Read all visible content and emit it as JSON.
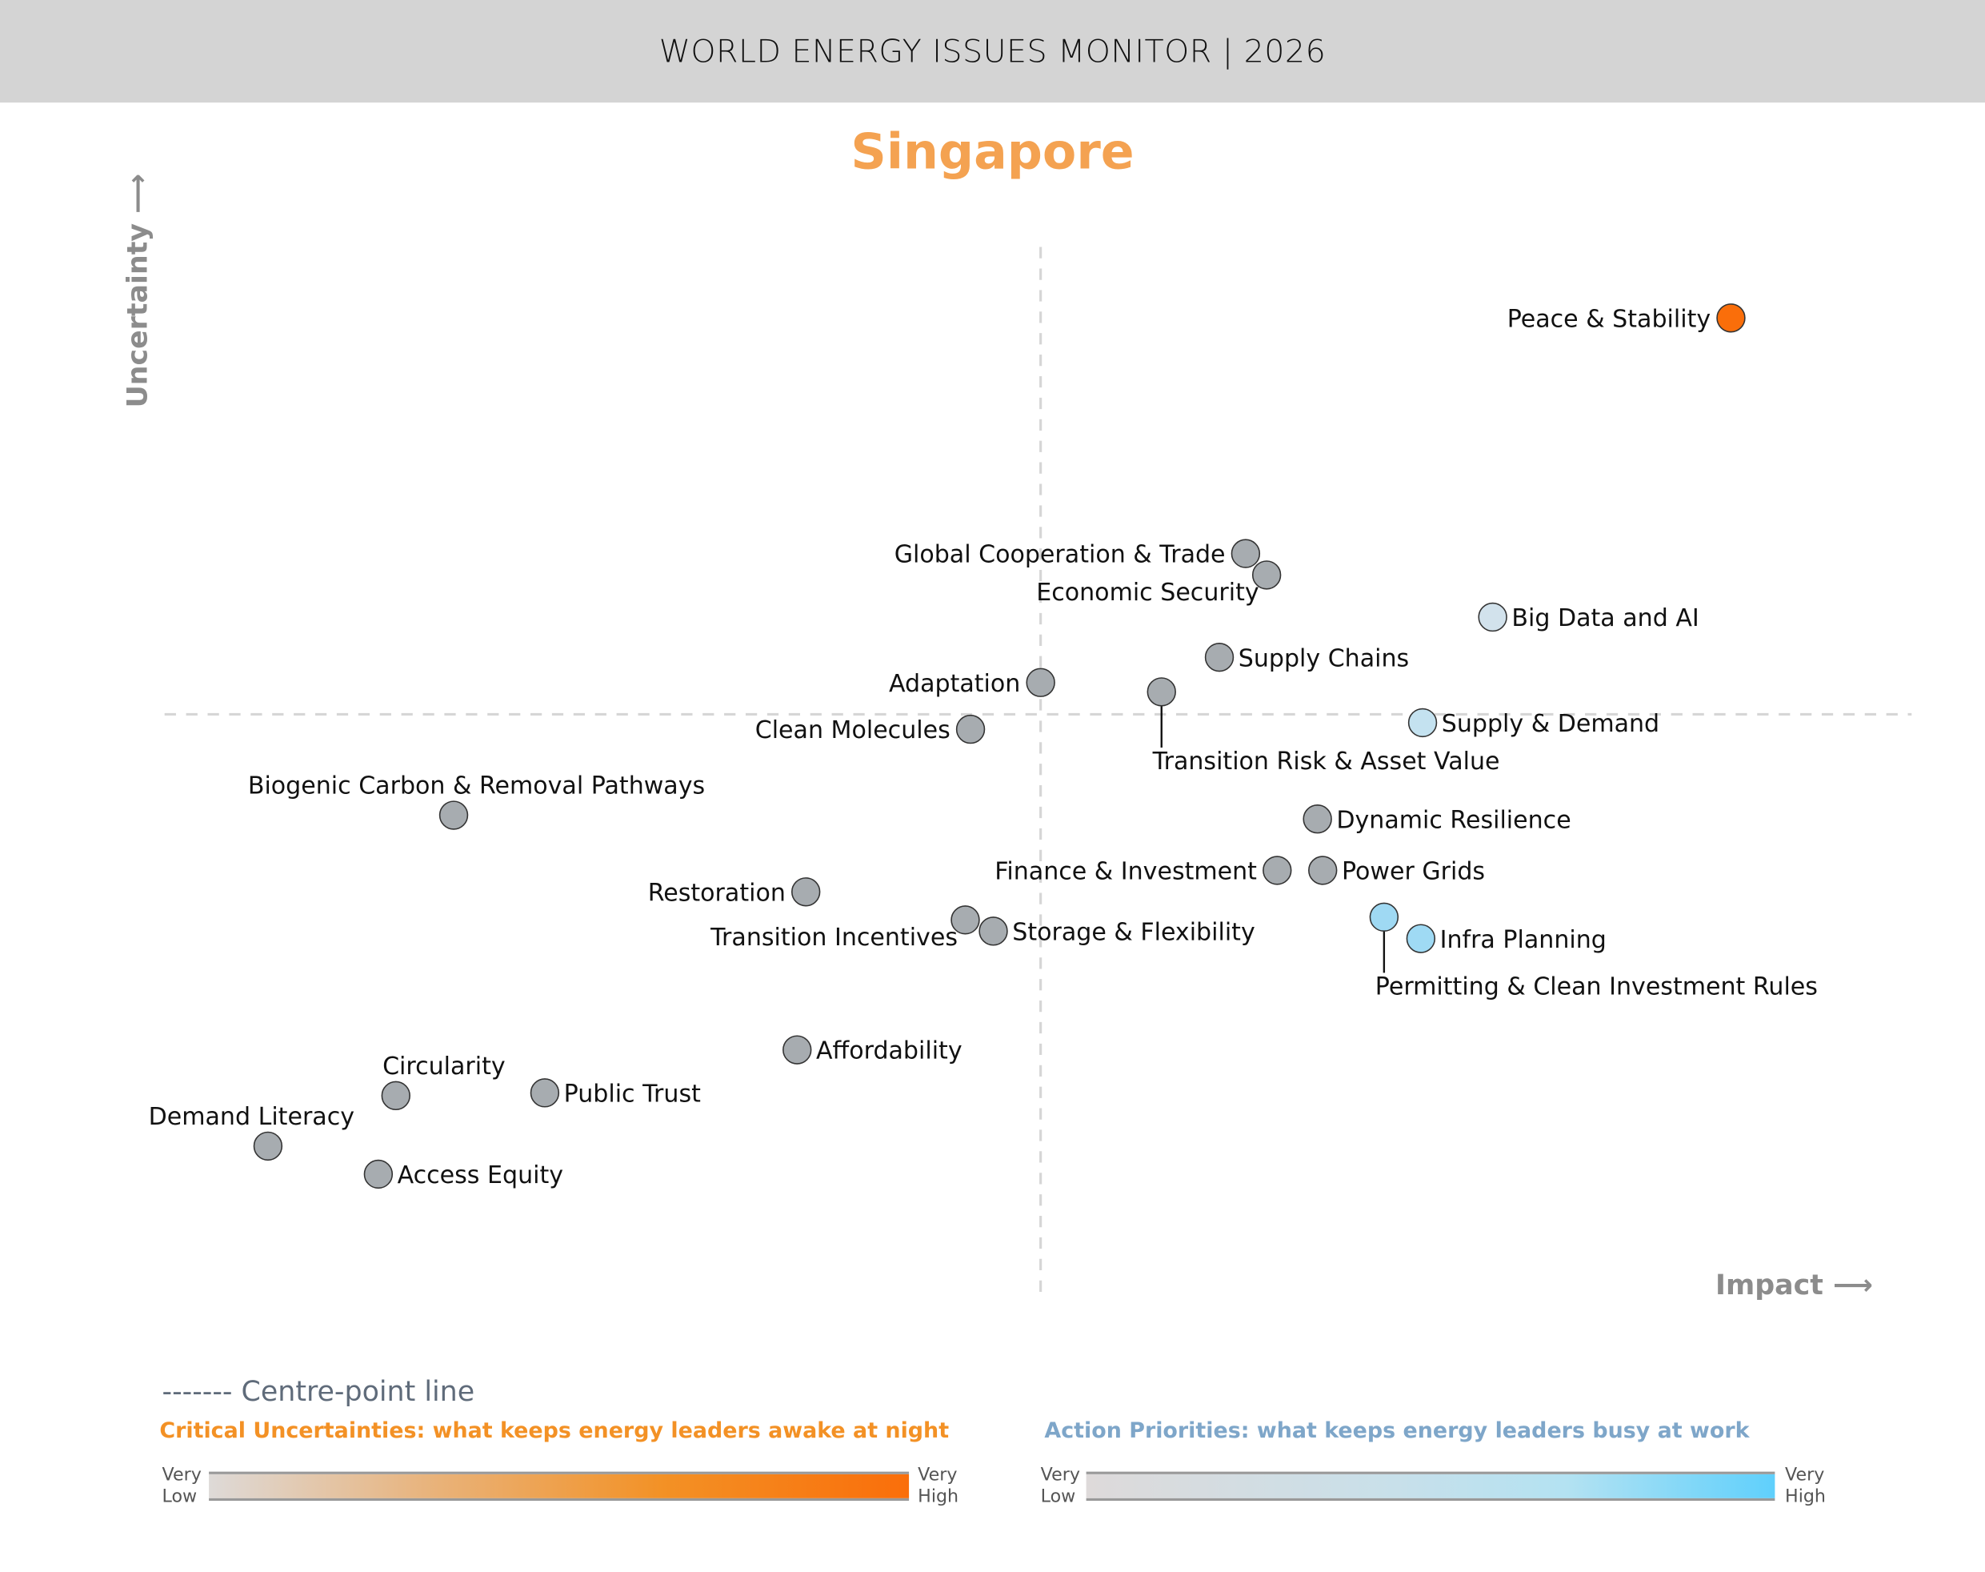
{
  "header": {
    "title": "WORLD ENERGY ISSUES MONITOR | 2026"
  },
  "chart_data": {
    "type": "scatter",
    "title": "Singapore",
    "xlabel": "Impact",
    "ylabel": "Uncertainty",
    "xlim": [
      0,
      100
    ],
    "ylim": [
      0,
      100
    ],
    "centre_point": {
      "impact": 50,
      "uncertainty": 50
    },
    "grid": false,
    "points": [
      {
        "label": "Peace & Stability",
        "impact": 89.4,
        "uncertainty": 92.4,
        "color": "#fa6e0a",
        "label_position": "left"
      },
      {
        "label": "Global Cooperation & Trade",
        "impact": 61.7,
        "uncertainty": 67.2,
        "color": "#a7acb0",
        "label_position": "left"
      },
      {
        "label": "Economic Security",
        "impact": 62.9,
        "uncertainty": 64.9,
        "color": "#a7acb0",
        "label_position": "below-left"
      },
      {
        "label": "Big Data and AI",
        "impact": 75.8,
        "uncertainty": 60.4,
        "color": "#d2e2ec",
        "label_position": "right"
      },
      {
        "label": "Supply Chains",
        "impact": 60.2,
        "uncertainty": 56.1,
        "color": "#a7acb0",
        "label_position": "right"
      },
      {
        "label": "Adaptation",
        "impact": 50.0,
        "uncertainty": 53.4,
        "color": "#a7acb0",
        "label_position": "left"
      },
      {
        "label": "Transition Risk & Asset Value",
        "impact": 56.9,
        "uncertainty": 52.4,
        "color": "#a7acb0",
        "label_position": "below-leader"
      },
      {
        "label": "Supply & Demand",
        "impact": 71.8,
        "uncertainty": 49.1,
        "color": "#c4e2f0",
        "label_position": "right"
      },
      {
        "label": "Clean Molecules",
        "impact": 46.0,
        "uncertainty": 48.4,
        "color": "#a7acb0",
        "label_position": "left"
      },
      {
        "label": "Biogenic Carbon & Removal Pathways",
        "impact": 16.5,
        "uncertainty": 39.2,
        "color": "#a7acb0",
        "label_position": "above"
      },
      {
        "label": "Dynamic Resilience",
        "impact": 65.8,
        "uncertainty": 38.8,
        "color": "#a7acb0",
        "label_position": "right"
      },
      {
        "label": "Finance & Investment",
        "impact": 63.5,
        "uncertainty": 33.3,
        "color": "#a7acb0",
        "label_position": "left"
      },
      {
        "label": "Power Grids",
        "impact": 66.1,
        "uncertainty": 33.3,
        "color": "#a7acb0",
        "label_position": "right"
      },
      {
        "label": "Restoration",
        "impact": 36.6,
        "uncertainty": 31.0,
        "color": "#a7acb0",
        "label_position": "left"
      },
      {
        "label": "Transition Incentives",
        "impact": 45.7,
        "uncertainty": 28.0,
        "color": "#a7acb0",
        "label_position": "below-left"
      },
      {
        "label": "Storage & Flexibility",
        "impact": 47.3,
        "uncertainty": 26.8,
        "color": "#a7acb0",
        "label_position": "right"
      },
      {
        "label": "Permitting & Clean Investment Rules",
        "impact": 69.6,
        "uncertainty": 28.3,
        "color": "#9fd9f3",
        "label_position": "below-leader"
      },
      {
        "label": "Infra Planning",
        "impact": 71.7,
        "uncertainty": 26.0,
        "color": "#9fdaf4",
        "label_position": "right"
      },
      {
        "label": "Affordability",
        "impact": 36.1,
        "uncertainty": 14.1,
        "color": "#a7acb0",
        "label_position": "right"
      },
      {
        "label": "Circularity",
        "impact": 13.2,
        "uncertainty": 9.2,
        "color": "#a7acb0",
        "label_position": "above"
      },
      {
        "label": "Public Trust",
        "impact": 21.7,
        "uncertainty": 9.5,
        "color": "#a7acb0",
        "label_position": "right"
      },
      {
        "label": "Demand Literacy",
        "impact": 5.9,
        "uncertainty": 3.8,
        "color": "#a7acb0",
        "label_position": "above"
      },
      {
        "label": "Access Equity",
        "impact": 12.2,
        "uncertainty": 0.8,
        "color": "#a7acb0",
        "label_position": "right"
      }
    ]
  },
  "axes": {
    "uncertainty_label": "Uncertainty ⟶",
    "impact_label": "Impact ⟶"
  },
  "legend": {
    "centre_line": "------- Centre-point line",
    "critical_uncertainties": {
      "title": "Critical Uncertainties: what keeps energy leaders awake at night",
      "low": "Very Low",
      "high": "Very High",
      "color_low": "#dedad8",
      "color_high": "#fa6e0a"
    },
    "action_priorities": {
      "title": "Action Priorities: what keeps energy leaders busy at work",
      "low": "Very Low",
      "high": "Very High",
      "color_low": "#dedada",
      "color_high": "#5fd0fc"
    }
  },
  "colors": {
    "title_accent": "#f4a251",
    "critical_title": "#f39125",
    "action_title": "#7ea6c9"
  }
}
